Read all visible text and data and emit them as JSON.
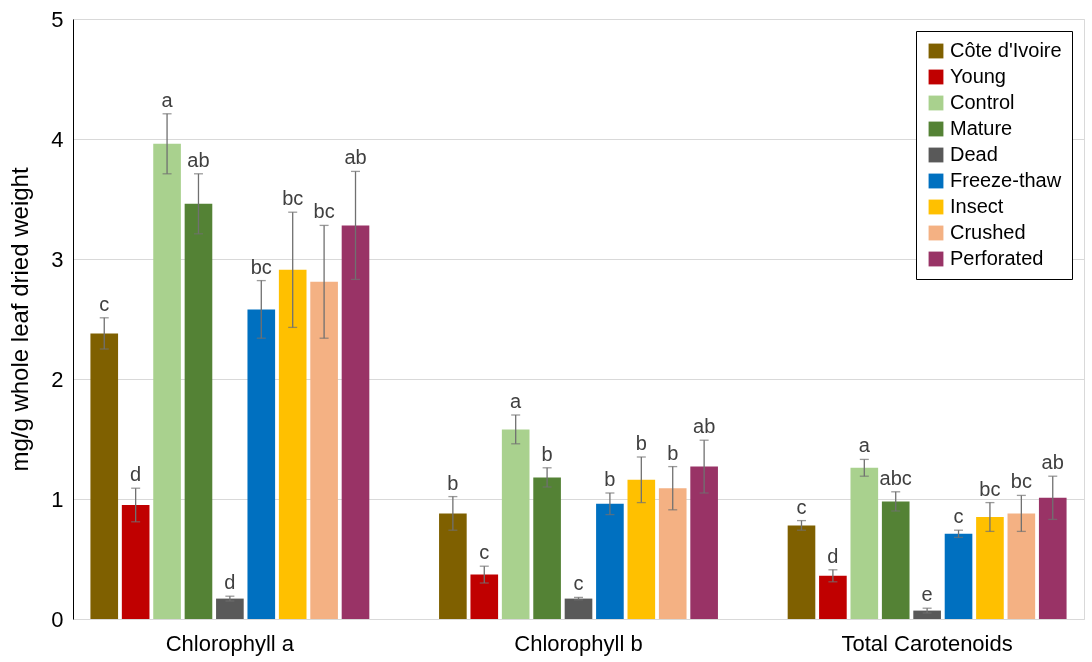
{
  "chart_data": {
    "type": "bar",
    "ylabel": "mg/g whole leaf dried weight",
    "categories": [
      "Chlorophyll a",
      "Chlorophyll b",
      "Total Carotenoids"
    ],
    "ylim": [
      0,
      5
    ],
    "yticks": [
      0,
      1,
      2,
      3,
      4,
      5
    ],
    "grid": "y",
    "legend": "top right",
    "series": [
      {
        "name": "Côte d'Ivoire",
        "color": "#7f6000",
        "values": [
          2.38,
          0.88,
          0.78
        ],
        "errors": [
          0.13,
          0.14,
          0.04
        ],
        "value_labels": [
          "c",
          "b",
          "c"
        ]
      },
      {
        "name": "Young",
        "color": "#c00000",
        "values": [
          0.95,
          0.37,
          0.36
        ],
        "errors": [
          0.14,
          0.07,
          0.05
        ],
        "value_labels": [
          "d",
          "c",
          "d"
        ]
      },
      {
        "name": "Control",
        "color": "#a9d18e",
        "values": [
          3.96,
          1.58,
          1.26
        ],
        "errors": [
          0.25,
          0.12,
          0.07
        ],
        "value_labels": [
          "a",
          "a",
          "a"
        ]
      },
      {
        "name": "Mature",
        "color": "#548235",
        "values": [
          3.46,
          1.18,
          0.98
        ],
        "errors": [
          0.25,
          0.08,
          0.08
        ],
        "value_labels": [
          "ab",
          "b",
          "abc"
        ]
      },
      {
        "name": "Dead",
        "color": "#595959",
        "values": [
          0.17,
          0.17,
          0.07
        ],
        "errors": [
          0.02,
          0.01,
          0.02
        ],
        "value_labels": [
          "d",
          "c",
          "e"
        ]
      },
      {
        "name": "Freeze-thaw",
        "color": "#0070c0",
        "values": [
          2.58,
          0.96,
          0.71
        ],
        "errors": [
          0.24,
          0.09,
          0.03
        ],
        "value_labels": [
          "bc",
          "b",
          "c"
        ]
      },
      {
        "name": "Insect",
        "color": "#ffc000",
        "values": [
          2.91,
          1.16,
          0.85
        ],
        "errors": [
          0.48,
          0.19,
          0.12
        ],
        "value_labels": [
          "bc",
          "b",
          "bc"
        ]
      },
      {
        "name": "Crushed",
        "color": "#f4b183",
        "values": [
          2.81,
          1.09,
          0.88
        ],
        "errors": [
          0.47,
          0.18,
          0.15
        ],
        "value_labels": [
          "bc",
          "b",
          "bc"
        ]
      },
      {
        "name": "Perforated",
        "color": "#993366",
        "values": [
          3.28,
          1.27,
          1.01
        ],
        "errors": [
          0.45,
          0.22,
          0.18
        ],
        "value_labels": [
          "ab",
          "ab",
          "ab"
        ]
      }
    ]
  }
}
